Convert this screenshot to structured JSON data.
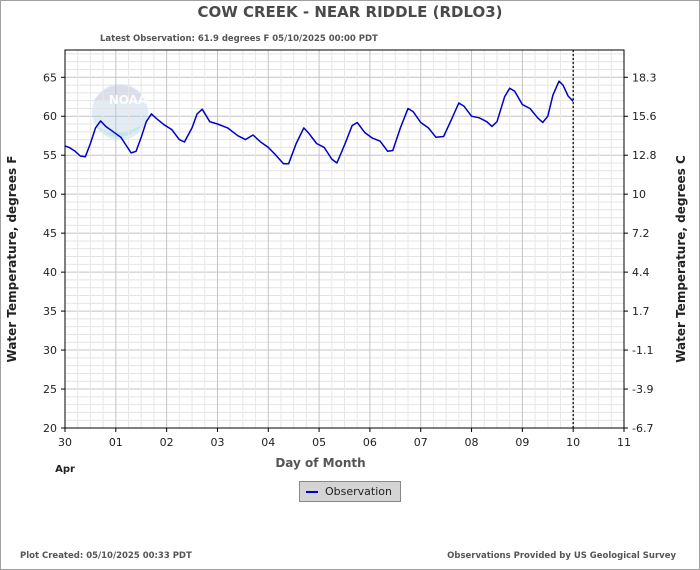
{
  "title": "COW CREEK - NEAR RIDDLE  (RDLO3)",
  "subtitle": "Latest Observation: 61.9 degrees F 05/10/2025 00:00 PDT",
  "footer_left": "Plot Created: 05/10/2025 00:33 PDT",
  "footer_right": "Observations Provided by US Geological Survey",
  "logo_text": "NOAA",
  "chart_data": {
    "type": "line",
    "xlabel": "Day of Month",
    "ylabel_left": "Water Temperature, degrees F",
    "ylabel_right": "Water Temperature, degrees C",
    "x_tick_labels": [
      "30",
      "01",
      "02",
      "03",
      "04",
      "05",
      "06",
      "07",
      "08",
      "09",
      "10",
      "11"
    ],
    "x_sublabel": "Apr",
    "x_range_days": [
      0,
      11
    ],
    "ylim": [
      20,
      68.5
    ],
    "y_ticks_left": [
      "20",
      "25",
      "30",
      "35",
      "40",
      "45",
      "50",
      "55",
      "60",
      "65"
    ],
    "y_ticks_left_values": [
      20,
      25,
      30,
      35,
      40,
      45,
      50,
      55,
      60,
      65
    ],
    "y_ticks_right": [
      "-6.7",
      "-3.9",
      "-1.1",
      "1.7",
      "4.4",
      "7.2",
      "10",
      "12.8",
      "15.6",
      "18.3"
    ],
    "y_ticks_right_values": [
      20,
      25,
      30,
      35,
      40,
      45,
      50,
      55,
      60,
      65
    ],
    "grid": true,
    "latest_marker_day": 10,
    "legend": {
      "label": "Observation",
      "placement": "bottom-center"
    },
    "series": [
      {
        "name": "Observation",
        "color": "#0000c8",
        "points": [
          [
            0.0,
            56.2
          ],
          [
            0.08,
            56.0
          ],
          [
            0.2,
            55.5
          ],
          [
            0.3,
            54.9
          ],
          [
            0.4,
            54.8
          ],
          [
            0.5,
            56.5
          ],
          [
            0.6,
            58.5
          ],
          [
            0.7,
            59.4
          ],
          [
            0.8,
            58.7
          ],
          [
            0.95,
            58.0
          ],
          [
            1.1,
            57.3
          ],
          [
            1.2,
            56.3
          ],
          [
            1.3,
            55.3
          ],
          [
            1.4,
            55.5
          ],
          [
            1.5,
            57.3
          ],
          [
            1.6,
            59.3
          ],
          [
            1.7,
            60.3
          ],
          [
            1.8,
            59.7
          ],
          [
            1.95,
            58.9
          ],
          [
            2.1,
            58.3
          ],
          [
            2.25,
            57.0
          ],
          [
            2.35,
            56.7
          ],
          [
            2.5,
            58.5
          ],
          [
            2.6,
            60.3
          ],
          [
            2.7,
            60.9
          ],
          [
            2.85,
            59.3
          ],
          [
            3.0,
            59.0
          ],
          [
            3.2,
            58.5
          ],
          [
            3.4,
            57.5
          ],
          [
            3.55,
            57.0
          ],
          [
            3.7,
            57.6
          ],
          [
            3.85,
            56.7
          ],
          [
            4.0,
            56.0
          ],
          [
            4.15,
            55.0
          ],
          [
            4.3,
            53.9
          ],
          [
            4.4,
            53.9
          ],
          [
            4.55,
            56.5
          ],
          [
            4.7,
            58.5
          ],
          [
            4.8,
            57.8
          ],
          [
            4.95,
            56.5
          ],
          [
            5.1,
            56.0
          ],
          [
            5.25,
            54.5
          ],
          [
            5.35,
            54.0
          ],
          [
            5.5,
            56.3
          ],
          [
            5.65,
            58.8
          ],
          [
            5.75,
            59.2
          ],
          [
            5.9,
            57.9
          ],
          [
            6.05,
            57.2
          ],
          [
            6.2,
            56.8
          ],
          [
            6.35,
            55.5
          ],
          [
            6.45,
            55.6
          ],
          [
            6.6,
            58.5
          ],
          [
            6.75,
            61.0
          ],
          [
            6.85,
            60.6
          ],
          [
            7.0,
            59.2
          ],
          [
            7.15,
            58.5
          ],
          [
            7.3,
            57.3
          ],
          [
            7.45,
            57.4
          ],
          [
            7.6,
            59.5
          ],
          [
            7.75,
            61.7
          ],
          [
            7.85,
            61.3
          ],
          [
            8.0,
            60.0
          ],
          [
            8.15,
            59.8
          ],
          [
            8.3,
            59.3
          ],
          [
            8.4,
            58.7
          ],
          [
            8.5,
            59.3
          ],
          [
            8.65,
            62.5
          ],
          [
            8.75,
            63.6
          ],
          [
            8.85,
            63.2
          ],
          [
            9.0,
            61.5
          ],
          [
            9.15,
            61.0
          ],
          [
            9.3,
            59.8
          ],
          [
            9.4,
            59.2
          ],
          [
            9.5,
            60.0
          ],
          [
            9.6,
            62.7
          ],
          [
            9.72,
            64.5
          ],
          [
            9.8,
            64.0
          ],
          [
            9.9,
            62.6
          ],
          [
            10.0,
            61.9
          ]
        ]
      }
    ]
  }
}
